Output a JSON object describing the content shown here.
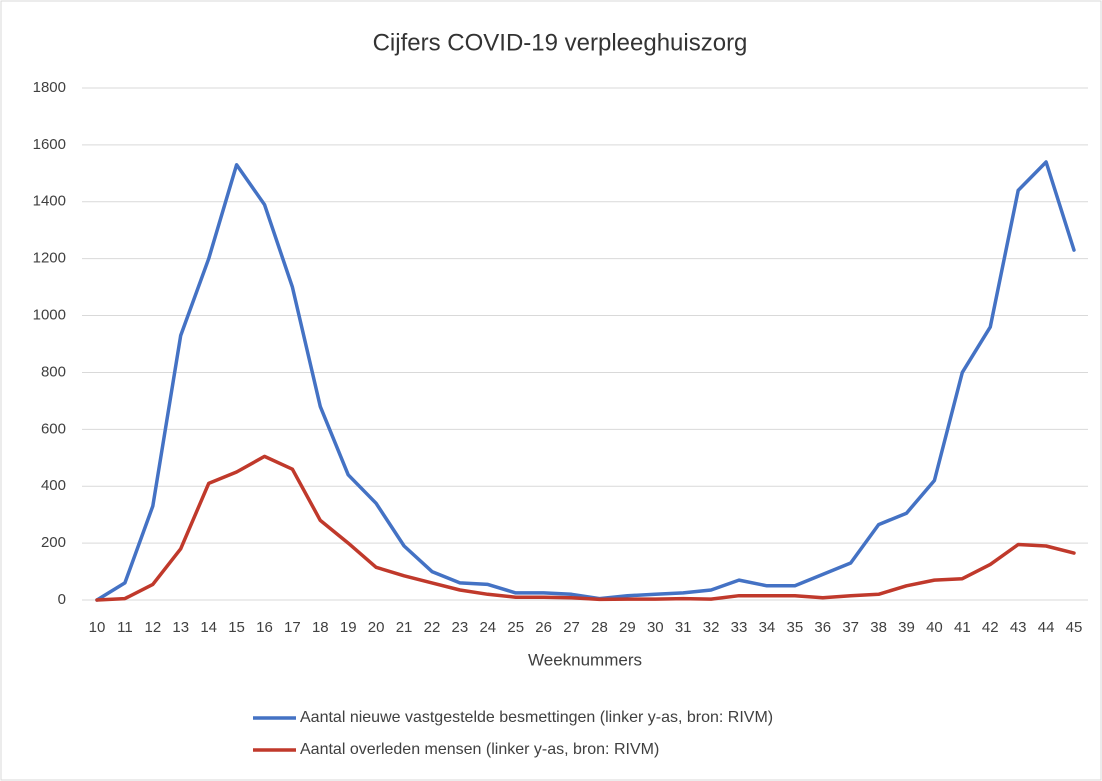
{
  "chart_data": {
    "type": "line",
    "title": "Cijfers COVID-19 verpleeghuiszorg",
    "x_label": "Weeknummers",
    "categories": [
      "10",
      "11",
      "12",
      "13",
      "14",
      "15",
      "16",
      "17",
      "18",
      "19",
      "20",
      "21",
      "22",
      "23",
      "24",
      "25",
      "26",
      "27",
      "28",
      "29",
      "30",
      "31",
      "32",
      "33",
      "34",
      "35",
      "36",
      "37",
      "38",
      "39",
      "40",
      "41",
      "42",
      "43",
      "44",
      "45"
    ],
    "series": [
      {
        "name": "Aantal nieuwe vastgestelde besmettingen  (linker y-as, bron: RIVM)",
        "color": "#4472c4",
        "values": [
          0,
          60,
          330,
          930,
          1200,
          1530,
          1390,
          1100,
          680,
          440,
          340,
          190,
          100,
          60,
          55,
          25,
          25,
          20,
          5,
          15,
          20,
          25,
          35,
          70,
          50,
          50,
          90,
          130,
          265,
          305,
          420,
          800,
          960,
          1440,
          1540,
          1230
        ]
      },
      {
        "name": "Aantal overleden mensen  (linker y-as, bron: RIVM)",
        "color": "#c0392b",
        "values": [
          0,
          5,
          55,
          180,
          410,
          450,
          505,
          460,
          280,
          200,
          115,
          85,
          60,
          35,
          20,
          10,
          10,
          8,
          2,
          3,
          3,
          5,
          3,
          15,
          15,
          15,
          8,
          15,
          20,
          50,
          70,
          75,
          125,
          195,
          190,
          165
        ]
      }
    ],
    "ylim": [
      0,
      1800
    ],
    "yticks": [
      0,
      200,
      400,
      600,
      800,
      1000,
      1200,
      1400,
      1600,
      1800
    ],
    "grid": true,
    "legend": "bottom"
  }
}
